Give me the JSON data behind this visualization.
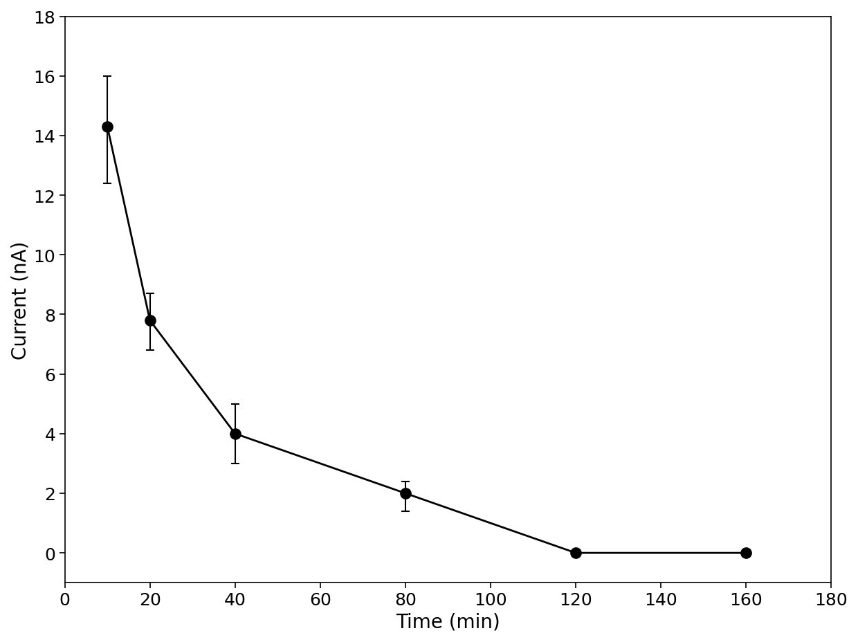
{
  "x": [
    10,
    20,
    40,
    80,
    120,
    160
  ],
  "y": [
    14.3,
    7.8,
    4.0,
    2.0,
    0.0,
    0.0
  ],
  "yerr_upper": [
    1.7,
    0.9,
    1.0,
    0.4,
    0.0,
    0.0
  ],
  "yerr_lower": [
    1.9,
    1.0,
    1.0,
    0.6,
    0.0,
    0.0
  ],
  "xlabel": "Time (min)",
  "ylabel": "Current (nA)",
  "xlim": [
    0,
    180
  ],
  "ylim": [
    -1,
    18
  ],
  "xticks": [
    0,
    20,
    40,
    60,
    80,
    100,
    120,
    140,
    160,
    180
  ],
  "yticks": [
    0,
    2,
    4,
    6,
    8,
    10,
    12,
    14,
    16,
    18
  ],
  "marker_color": "#000000",
  "line_color": "#000000",
  "marker_size": 11,
  "line_width": 2.0,
  "capsize": 4,
  "elinewidth": 1.5,
  "xlabel_fontsize": 20,
  "ylabel_fontsize": 20,
  "tick_fontsize": 18,
  "figsize": [
    12.4,
    9.29
  ],
  "dpi": 100
}
